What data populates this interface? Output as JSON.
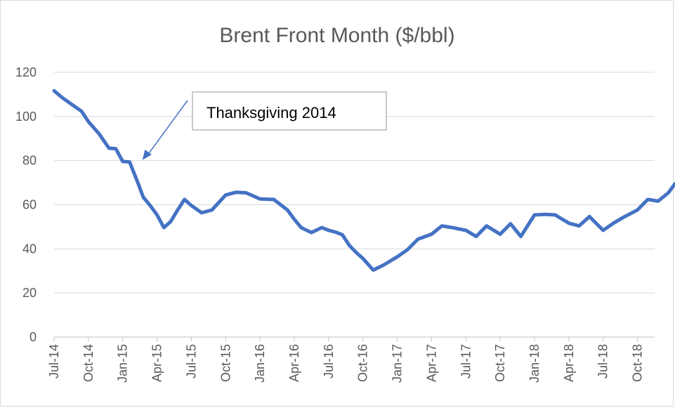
{
  "chart_data": {
    "type": "line",
    "title": "Brent Front Month ($/bbl)",
    "xlabel": "",
    "ylabel": "",
    "ylim": [
      0,
      120
    ],
    "yticks": [
      0,
      20,
      40,
      60,
      80,
      100,
      120
    ],
    "grid": true,
    "legend": "none",
    "xticks": [
      "Jul-14",
      "Oct-14",
      "Jan-15",
      "Apr-15",
      "Jul-15",
      "Oct-15",
      "Jan-16",
      "Apr-16",
      "Jul-16",
      "Oct-16",
      "Jan-17",
      "Apr-17",
      "Jul-17",
      "Oct-17",
      "Jan-18",
      "Apr-18",
      "Jul-18",
      "Oct-18"
    ],
    "line_color": "#4472c4",
    "series": [
      {
        "x": [
          0,
          0.25,
          0.5,
          0.8,
          1.0,
          1.3,
          1.6,
          1.8,
          2.0,
          2.2,
          2.45,
          2.6,
          2.8,
          3.0,
          3.2,
          3.4,
          3.6,
          3.8,
          4.0,
          4.3,
          4.6,
          5.0,
          5.3,
          5.6,
          6.0,
          6.4,
          6.8,
          7.0,
          7.2,
          7.5,
          7.8,
          8.0,
          8.2,
          8.4,
          8.6,
          8.8,
          9.0,
          9.3,
          9.6,
          10.0,
          10.3,
          10.6,
          11.0,
          11.3,
          11.6,
          12.0,
          12.3,
          12.6,
          13.0,
          13.3,
          13.6,
          14.0,
          14.3,
          14.6,
          15.0,
          15.3,
          15.6,
          16.0,
          16.3,
          16.6,
          17.0,
          17.3,
          17.6,
          17.9,
          18.1,
          18.3,
          18.5
        ],
        "y": [
          112,
          108,
          106,
          102,
          98,
          92,
          86,
          85,
          80,
          79,
          70,
          63,
          60,
          55,
          50,
          52,
          58,
          62,
          60,
          56,
          58,
          64,
          66,
          65,
          63,
          62,
          58,
          53,
          50,
          47,
          50,
          48,
          48,
          46,
          42,
          38,
          36,
          30,
          33,
          36,
          40,
          44,
          47,
          50,
          50,
          48,
          46,
          50,
          47,
          51,
          46,
          55,
          56,
          55,
          52,
          50,
          55,
          48,
          52,
          54,
          58,
          62,
          62,
          65,
          70,
          64,
          67
        ]
      }
    ],
    "annotation": {
      "text": "Thanksgiving 2014",
      "target_x": 2.45,
      "target_y": 79
    }
  }
}
